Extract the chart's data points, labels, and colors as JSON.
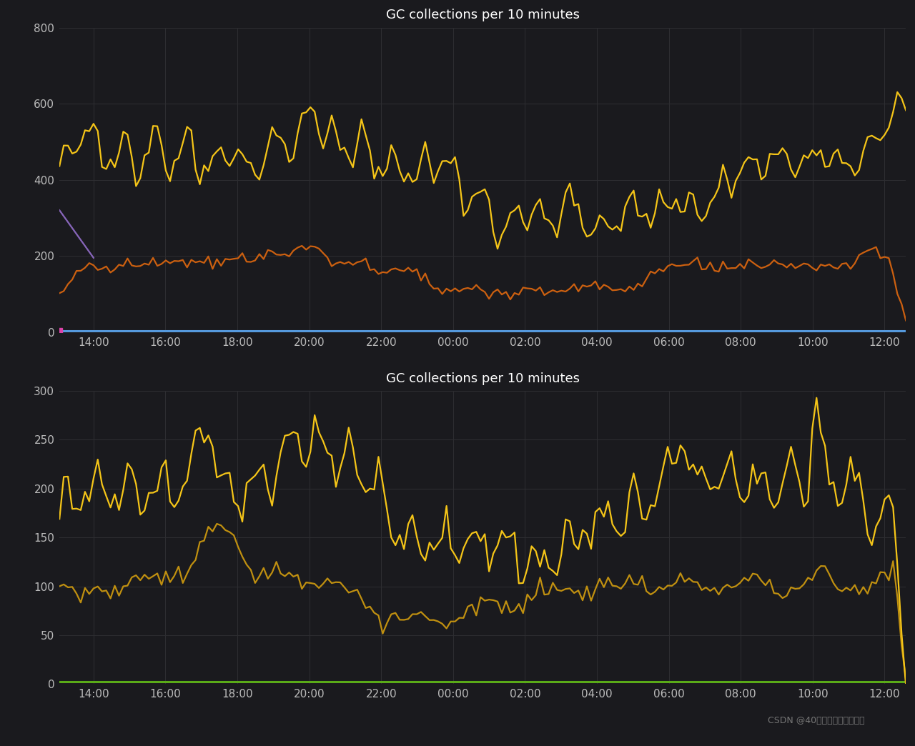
{
  "title": "GC collections per 10 minutes",
  "bg_color": "#1a1a1e",
  "axes_bg_color": "#1a1a1e",
  "grid_color": "#2e2e32",
  "text_color": "#bbbbbb",
  "title_color": "#ffffff",
  "watermark": "CSDN @40岁资深老架构师尼恩",
  "chart1": {
    "ylim": [
      0,
      800
    ],
    "yticks": [
      0,
      200,
      400,
      600,
      800
    ],
    "line_yellow_color": "#f5c518",
    "line_orange_color": "#cc6010",
    "line_purple_color": "#8866bb",
    "line_blue_color": "#5599dd",
    "line_pink_color": "#dd44aa",
    "line_width": 1.6
  },
  "chart2": {
    "ylim": [
      0,
      300
    ],
    "yticks": [
      0,
      50,
      100,
      150,
      200,
      250,
      300
    ],
    "line_upper_color": "#f5c518",
    "line_lower_color": "#c09010",
    "line_width": 1.6,
    "zero_line_color": "#5aaa18"
  },
  "xtick_labels": [
    "14:00",
    "16:00",
    "18:00",
    "20:00",
    "22:00",
    "00:00",
    "02:00",
    "04:00",
    "06:00",
    "08:00",
    "10:00",
    "12:00"
  ],
  "n_points": 200
}
